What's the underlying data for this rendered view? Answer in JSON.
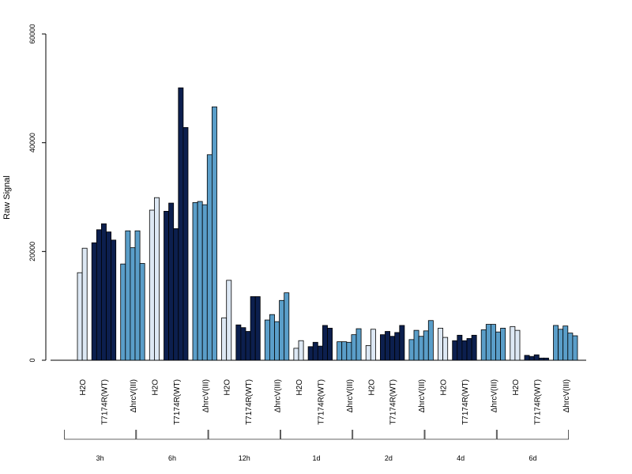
{
  "chart_data": {
    "type": "bar",
    "ylabel": "Raw Signal",
    "ylim": [
      0,
      60000
    ],
    "yticks": [
      0,
      20000,
      40000,
      60000
    ],
    "grid": false,
    "timepoints": [
      "3h",
      "6h",
      "12h",
      "1d",
      "2d",
      "4d",
      "6d"
    ],
    "treatments": [
      "H2O",
      "T7174R(WT)",
      "ΔhrcV(III)"
    ],
    "colors": {
      "H2O": "#dde8f4",
      "T7174R(WT)": "#0c1f4e",
      "ΔhrcV(III)": "#5a9ec9"
    },
    "groups": [
      {
        "timepoint": "3h",
        "values": {
          "H2O": [
            16100,
            20600
          ],
          "T7174R(WT)": [
            21600,
            24000,
            25100,
            23600,
            22100
          ],
          "ΔhrcV(III)": [
            17700,
            23800,
            20700,
            23800,
            17800
          ]
        }
      },
      {
        "timepoint": "6h",
        "values": {
          "H2O": [
            27600,
            29900
          ],
          "T7174R(WT)": [
            27400,
            28900,
            24200,
            50100,
            42800
          ],
          "ΔhrcV(III)": [
            29000,
            29200,
            28600,
            37800,
            46600
          ]
        }
      },
      {
        "timepoint": "12h",
        "values": {
          "H2O": [
            7800,
            14700
          ],
          "T7174R(WT)": [
            6500,
            6000,
            5300,
            11700,
            11700
          ],
          "ΔhrcV(III)": [
            7400,
            8400,
            7100,
            11000,
            12400
          ]
        }
      },
      {
        "timepoint": "1d",
        "values": {
          "H2O": [
            2200,
            3600
          ],
          "T7174R(WT)": [
            2500,
            3300,
            2600,
            6400,
            5900
          ],
          "ΔhrcV(III)": [
            3400,
            3400,
            3300,
            4700,
            5800
          ]
        }
      },
      {
        "timepoint": "2d",
        "values": {
          "H2O": [
            2700,
            5700
          ],
          "T7174R(WT)": [
            4700,
            5300,
            4400,
            5100,
            6400
          ],
          "ΔhrcV(III)": [
            3800,
            5500,
            4400,
            5400,
            7300
          ]
        }
      },
      {
        "timepoint": "4d",
        "values": {
          "H2O": [
            5900,
            4200
          ],
          "T7174R(WT)": [
            3600,
            4600,
            3600,
            4000,
            4600
          ],
          "ΔhrcV(III)": [
            5600,
            6600,
            6600,
            5200,
            5900
          ]
        }
      },
      {
        "timepoint": "6d",
        "values": {
          "H2O": [
            6200,
            5500
          ],
          "T7174R(WT)": [
            900,
            700,
            1000,
            400,
            400
          ],
          "ΔhrcV(III)": [
            6400,
            5700,
            6300,
            5000,
            4500
          ]
        }
      }
    ]
  }
}
